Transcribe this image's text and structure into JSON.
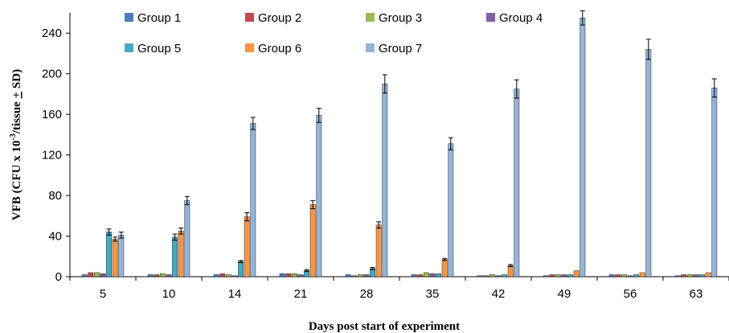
{
  "chart_data": {
    "type": "bar",
    "xlabel": "Days post start of experiment",
    "ylabel_parts": [
      "VFB (CFU x 10",
      "-3",
      "/tissue ",
      "+",
      " SD)"
    ],
    "ylim": [
      0,
      260
    ],
    "yticks": [
      0,
      40,
      80,
      120,
      160,
      200,
      240
    ],
    "categories": [
      "5",
      "10",
      "14",
      "21",
      "28",
      "35",
      "42",
      "49",
      "56",
      "63"
    ],
    "legend_position": "top",
    "series": [
      {
        "name": "Group 1",
        "color": "#4a7ebb",
        "values": [
          2,
          2,
          2,
          3,
          2,
          2,
          1,
          1,
          2,
          1
        ],
        "errors": [
          0,
          0,
          0,
          0,
          0,
          0,
          0,
          0,
          0,
          0
        ]
      },
      {
        "name": "Group 2",
        "color": "#be4b48",
        "values": [
          4,
          2,
          3,
          3,
          1,
          2,
          1,
          2,
          2,
          2
        ],
        "errors": [
          0,
          0,
          0,
          0,
          0,
          0,
          0,
          0,
          0,
          0
        ]
      },
      {
        "name": "Group 3",
        "color": "#98b954",
        "values": [
          4,
          3,
          2,
          3,
          2,
          4,
          2,
          2,
          2,
          2
        ],
        "errors": [
          0,
          0,
          0,
          0,
          0,
          0,
          0,
          0,
          0,
          0
        ]
      },
      {
        "name": "Group 4",
        "color": "#7d60a0",
        "values": [
          3,
          2,
          1,
          2,
          2,
          3,
          1,
          2,
          1,
          2
        ],
        "errors": [
          0,
          0,
          0,
          0,
          0,
          0,
          0,
          0,
          0,
          0
        ]
      },
      {
        "name": "Group 5",
        "color": "#46aac5",
        "values": [
          44,
          39,
          15,
          6,
          8,
          3,
          2,
          2,
          2,
          2
        ],
        "errors": [
          3,
          3,
          1,
          1,
          1,
          0,
          0,
          0,
          0,
          0
        ]
      },
      {
        "name": "Group 6",
        "color": "#f79646",
        "values": [
          37,
          45,
          59,
          71,
          51,
          17,
          11,
          6,
          4,
          4
        ],
        "errors": [
          2,
          3,
          4,
          4,
          3,
          1,
          1,
          0,
          0,
          0
        ]
      },
      {
        "name": "Group 7",
        "color": "#95b3d7",
        "values": [
          41,
          75,
          151,
          159,
          190,
          131,
          185,
          255,
          224,
          186
        ],
        "errors": [
          3,
          4,
          6,
          7,
          9,
          6,
          9,
          7,
          10,
          9
        ]
      }
    ]
  }
}
